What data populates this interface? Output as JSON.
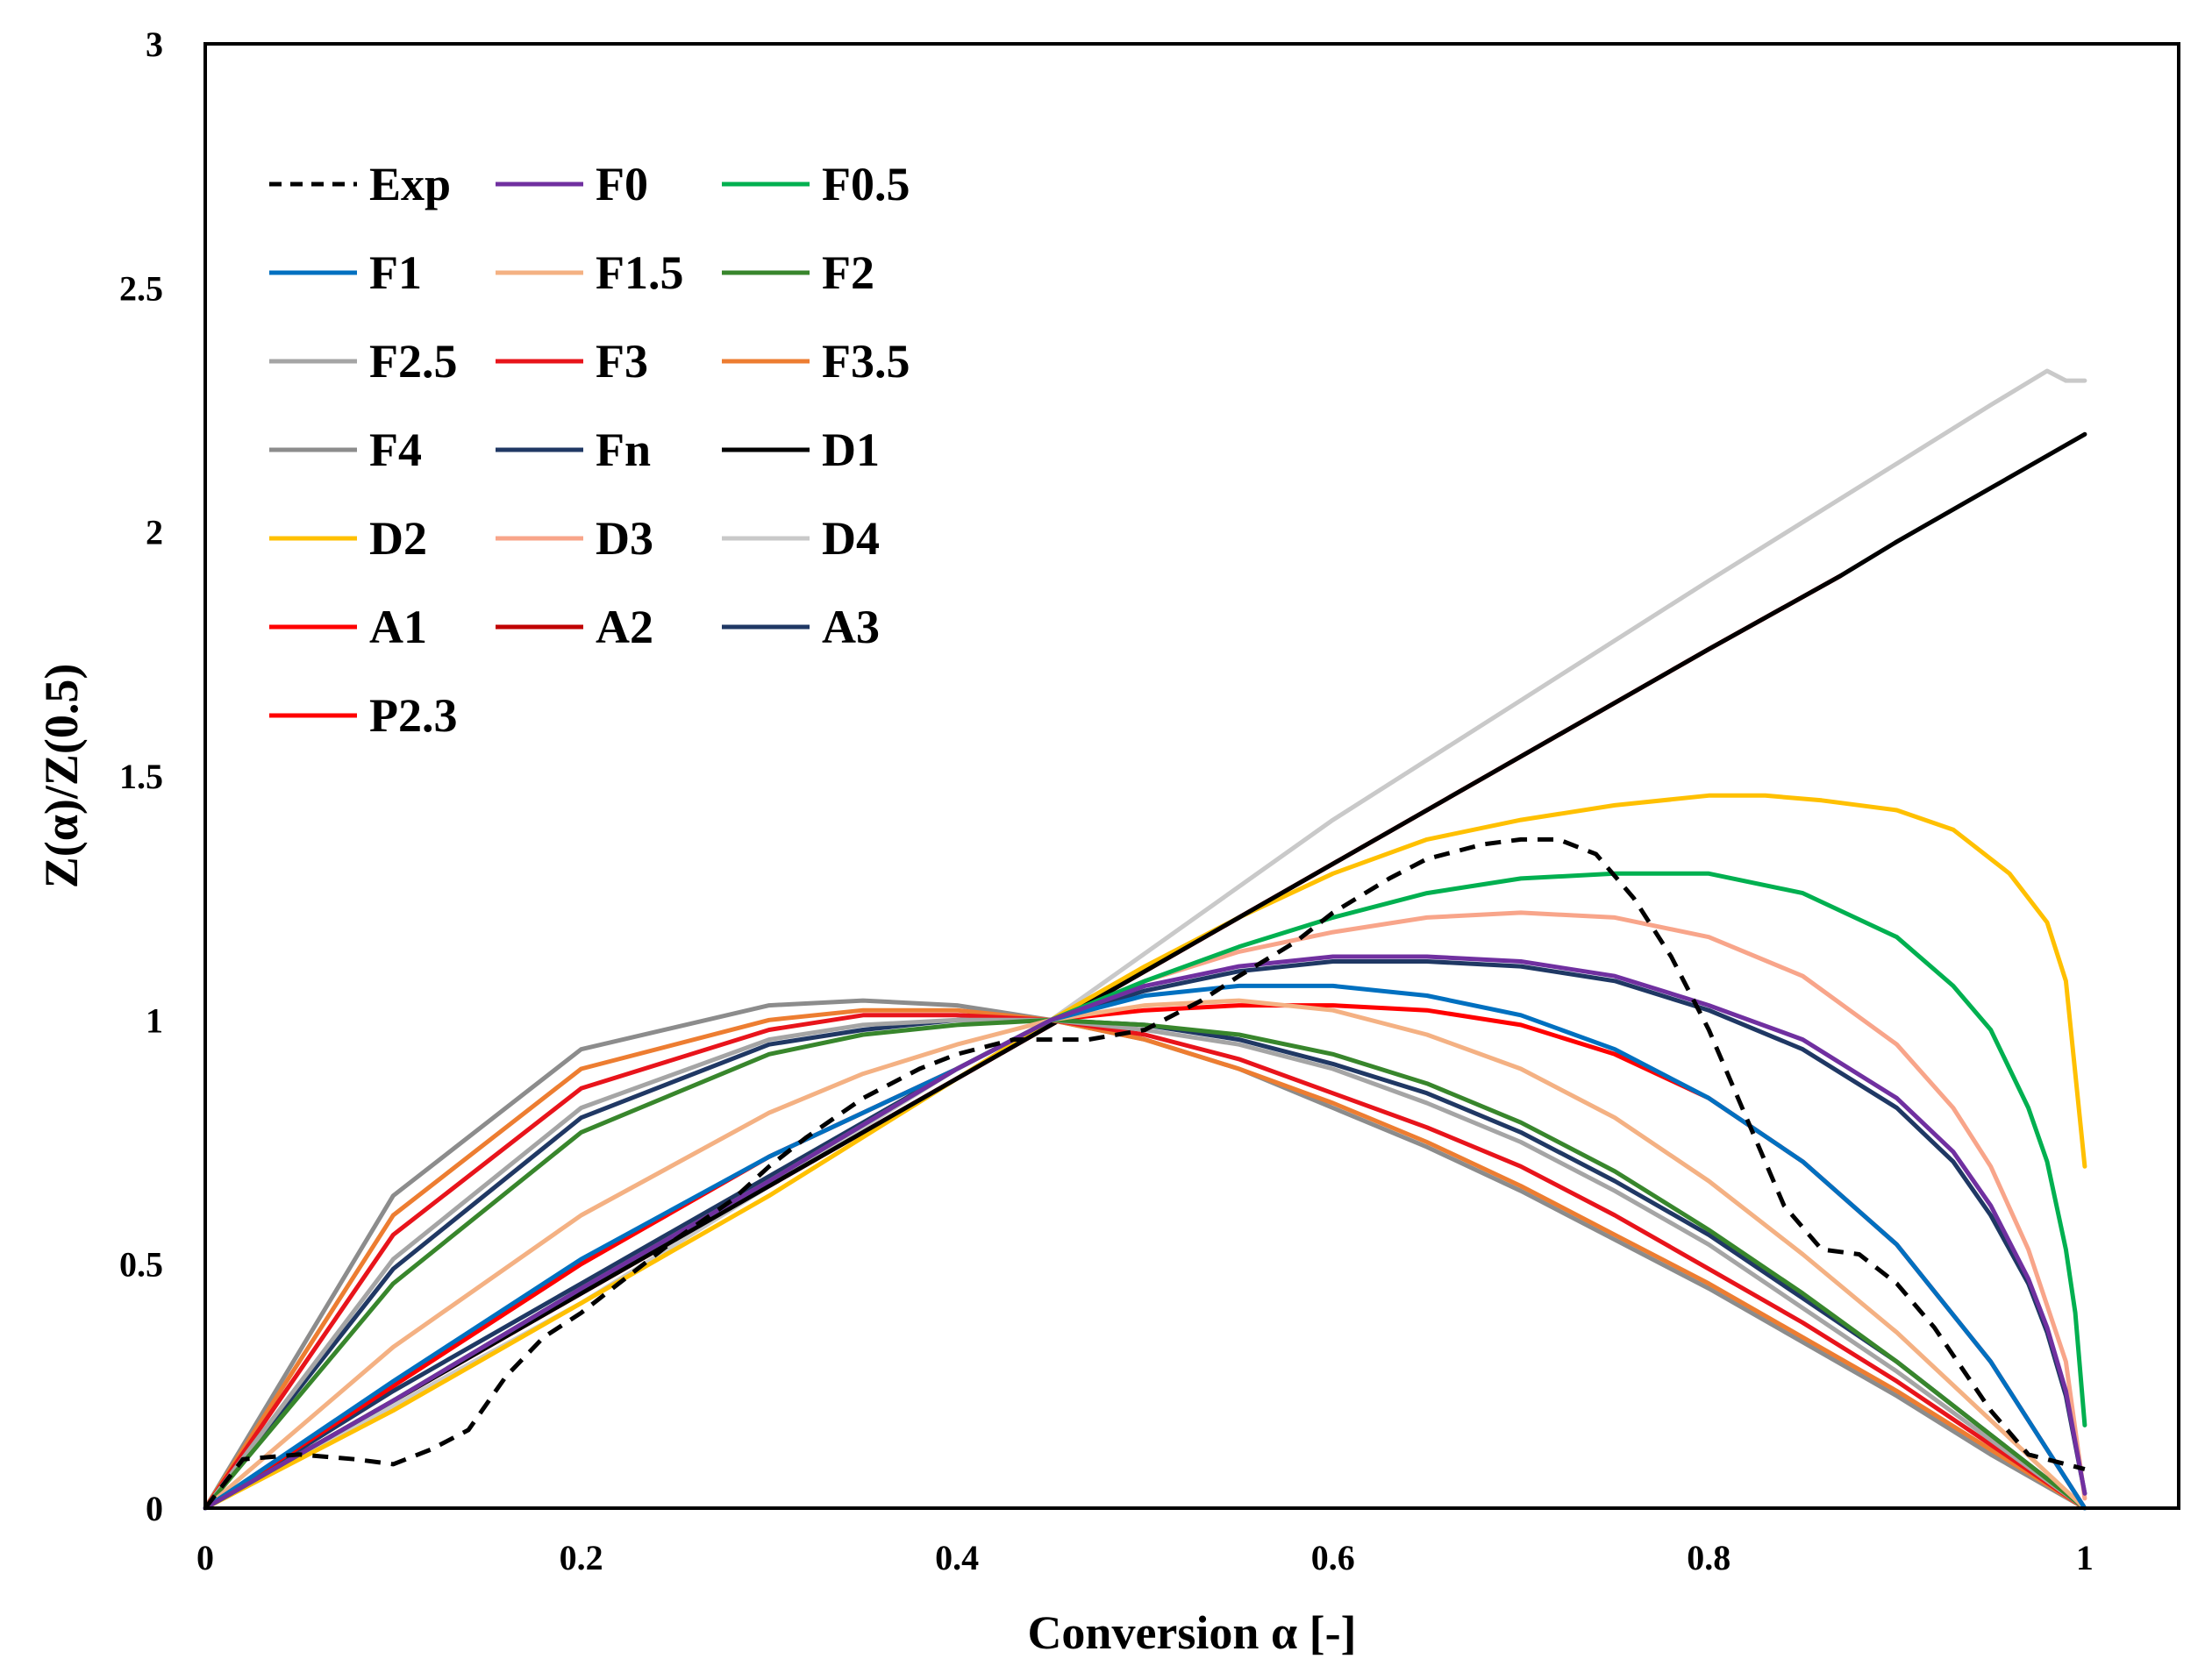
{
  "chart_data": {
    "type": "line",
    "title": "",
    "xlabel": "Conversion α [-]",
    "ylabel": "Z(α)/Z(0.5)",
    "xlim": [
      0,
      1.05
    ],
    "ylim": [
      0,
      3
    ],
    "xticks": [
      0,
      0.2,
      0.4,
      0.6,
      0.8,
      1
    ],
    "xtick_labels": [
      "0",
      "0.2",
      "0.4",
      "0.6",
      "0.8",
      "1"
    ],
    "yticks": [
      0,
      0.5,
      1,
      1.5,
      2,
      2.5,
      3
    ],
    "ytick_labels": [
      "0",
      "0.5",
      "1",
      "1.5",
      "2",
      "2.5",
      "3"
    ],
    "grid": false,
    "legend_position": "top-left",
    "series": [
      {
        "name": "Exp",
        "color": "#000000",
        "dash": true,
        "x": [
          0,
          0.02,
          0.05,
          0.08,
          0.1,
          0.12,
          0.14,
          0.16,
          0.18,
          0.2,
          0.22,
          0.25,
          0.28,
          0.3,
          0.32,
          0.35,
          0.38,
          0.4,
          0.43,
          0.45,
          0.47,
          0.5,
          0.53,
          0.55,
          0.58,
          0.6,
          0.63,
          0.65,
          0.68,
          0.7,
          0.72,
          0.74,
          0.76,
          0.78,
          0.8,
          0.82,
          0.84,
          0.86,
          0.88,
          0.9,
          0.92,
          0.95,
          0.97,
          0.99,
          1.0
        ],
        "y": [
          0.0,
          0.1,
          0.11,
          0.1,
          0.09,
          0.12,
          0.16,
          0.27,
          0.35,
          0.4,
          0.46,
          0.55,
          0.63,
          0.7,
          0.76,
          0.84,
          0.9,
          0.93,
          0.96,
          0.96,
          0.96,
          0.98,
          1.04,
          1.09,
          1.16,
          1.22,
          1.29,
          1.33,
          1.36,
          1.37,
          1.37,
          1.34,
          1.25,
          1.13,
          0.98,
          0.8,
          0.62,
          0.53,
          0.52,
          0.46,
          0.37,
          0.2,
          0.11,
          0.09,
          0.08
        ]
      },
      {
        "name": "F0",
        "color": "#7030A0",
        "dash": false,
        "x": [
          0,
          0.1,
          0.2,
          0.3,
          0.4,
          0.45,
          0.5,
          0.55,
          0.6,
          0.65,
          0.7,
          0.75,
          0.8,
          0.85,
          0.9,
          0.93,
          0.95,
          0.97,
          0.98,
          0.99,
          1.0
        ],
        "y": [
          0.0,
          0.22,
          0.45,
          0.67,
          0.9,
          1.0,
          1.07,
          1.11,
          1.13,
          1.13,
          1.12,
          1.09,
          1.03,
          0.96,
          0.84,
          0.73,
          0.62,
          0.47,
          0.37,
          0.24,
          0.03
        ]
      },
      {
        "name": "F0.5",
        "color": "#00B050",
        "dash": false,
        "x": [
          0,
          0.1,
          0.2,
          0.3,
          0.4,
          0.45,
          0.5,
          0.55,
          0.6,
          0.65,
          0.7,
          0.75,
          0.8,
          0.85,
          0.9,
          0.93,
          0.95,
          0.97,
          0.98,
          0.99,
          0.995,
          1.0
        ],
        "y": [
          0.0,
          0.22,
          0.45,
          0.67,
          0.9,
          1.0,
          1.08,
          1.15,
          1.21,
          1.26,
          1.29,
          1.3,
          1.3,
          1.26,
          1.17,
          1.07,
          0.98,
          0.82,
          0.71,
          0.53,
          0.4,
          0.17
        ]
      },
      {
        "name": "F1",
        "color": "#0070C0",
        "dash": false,
        "x": [
          0,
          0.1,
          0.2,
          0.3,
          0.4,
          0.45,
          0.5,
          0.55,
          0.6,
          0.65,
          0.7,
          0.75,
          0.8,
          0.85,
          0.9,
          0.95,
          1.0
        ],
        "y": [
          0.0,
          0.26,
          0.51,
          0.72,
          0.9,
          1.0,
          1.05,
          1.07,
          1.07,
          1.05,
          1.01,
          0.94,
          0.84,
          0.71,
          0.54,
          0.3,
          0.0
        ]
      },
      {
        "name": "F1.5",
        "color": "#F4B183",
        "dash": false,
        "x": [
          0,
          0.1,
          0.2,
          0.3,
          0.35,
          0.4,
          0.45,
          0.5,
          0.55,
          0.6,
          0.65,
          0.7,
          0.75,
          0.8,
          0.85,
          0.9,
          0.95,
          1.0
        ],
        "y": [
          0.0,
          0.33,
          0.6,
          0.81,
          0.89,
          0.95,
          1.0,
          1.03,
          1.04,
          1.02,
          0.97,
          0.9,
          0.8,
          0.67,
          0.52,
          0.36,
          0.18,
          0.0
        ]
      },
      {
        "name": "F2",
        "color": "#38862C",
        "dash": false,
        "x": [
          0,
          0.1,
          0.2,
          0.3,
          0.35,
          0.4,
          0.45,
          0.5,
          0.55,
          0.6,
          0.65,
          0.7,
          0.75,
          0.8,
          0.85,
          0.9,
          0.95,
          1.0
        ],
        "y": [
          0.0,
          0.46,
          0.77,
          0.93,
          0.97,
          0.99,
          1.0,
          0.99,
          0.97,
          0.93,
          0.87,
          0.79,
          0.69,
          0.57,
          0.44,
          0.3,
          0.15,
          0.0
        ]
      },
      {
        "name": "F2.5",
        "color": "#A5A5A5",
        "dash": false,
        "x": [
          0,
          0.1,
          0.2,
          0.3,
          0.35,
          0.4,
          0.45,
          0.5,
          0.55,
          0.6,
          0.65,
          0.7,
          0.75,
          0.8,
          0.85,
          0.9,
          0.95,
          1.0
        ],
        "y": [
          0.0,
          0.51,
          0.82,
          0.96,
          0.99,
          1.0,
          1.0,
          0.98,
          0.95,
          0.9,
          0.83,
          0.75,
          0.65,
          0.54,
          0.41,
          0.28,
          0.14,
          0.0
        ]
      },
      {
        "name": "F3",
        "color": "#E8141B",
        "dash": false,
        "x": [
          0,
          0.1,
          0.2,
          0.3,
          0.35,
          0.4,
          0.45,
          0.5,
          0.55,
          0.6,
          0.65,
          0.7,
          0.75,
          0.8,
          0.85,
          0.9,
          0.95,
          1.0
        ],
        "y": [
          0.0,
          0.56,
          0.86,
          0.98,
          1.01,
          1.01,
          1.0,
          0.97,
          0.92,
          0.85,
          0.78,
          0.7,
          0.6,
          0.49,
          0.38,
          0.26,
          0.13,
          0.0
        ]
      },
      {
        "name": "F3.5",
        "color": "#ED7D31",
        "dash": false,
        "x": [
          0,
          0.1,
          0.2,
          0.3,
          0.35,
          0.4,
          0.45,
          0.5,
          0.55,
          0.6,
          0.65,
          0.7,
          0.75,
          0.8,
          0.85,
          0.9,
          0.95,
          1.0
        ],
        "y": [
          0.0,
          0.6,
          0.9,
          1.0,
          1.02,
          1.02,
          1.0,
          0.96,
          0.9,
          0.83,
          0.75,
          0.66,
          0.56,
          0.46,
          0.35,
          0.24,
          0.12,
          0.0
        ]
      },
      {
        "name": "F4",
        "color": "#8C8C8C",
        "dash": false,
        "x": [
          0,
          0.1,
          0.2,
          0.3,
          0.35,
          0.4,
          0.45,
          0.5,
          0.55,
          0.6,
          0.65,
          0.7,
          0.75,
          0.8,
          0.85,
          0.9,
          0.95,
          1.0
        ],
        "y": [
          0.0,
          0.64,
          0.94,
          1.03,
          1.04,
          1.03,
          1.0,
          0.96,
          0.9,
          0.82,
          0.74,
          0.65,
          0.55,
          0.45,
          0.34,
          0.23,
          0.11,
          0.0
        ]
      },
      {
        "name": "Fn",
        "color": "#203864",
        "dash": false,
        "x": [
          0,
          0.1,
          0.2,
          0.3,
          0.35,
          0.4,
          0.45,
          0.5,
          0.55,
          0.6,
          0.65,
          0.7,
          0.75,
          0.8,
          0.85,
          0.9,
          0.95,
          1.0
        ],
        "y": [
          0.0,
          0.49,
          0.8,
          0.95,
          0.98,
          1.0,
          1.0,
          0.99,
          0.96,
          0.91,
          0.85,
          0.77,
          0.67,
          0.56,
          0.43,
          0.3,
          0.15,
          0.0
        ]
      },
      {
        "name": "D1",
        "color": "#000000",
        "dash": false,
        "x": [
          0,
          0.2,
          0.4,
          0.6,
          0.8,
          0.87,
          0.9,
          0.95,
          1.0
        ],
        "y": [
          0.0,
          0.44,
          0.88,
          1.32,
          1.76,
          1.91,
          1.98,
          2.09,
          2.2
        ]
      },
      {
        "name": "D2",
        "color": "#FFC000",
        "dash": false,
        "x": [
          0,
          0.1,
          0.2,
          0.3,
          0.4,
          0.45,
          0.5,
          0.55,
          0.6,
          0.65,
          0.7,
          0.75,
          0.8,
          0.83,
          0.86,
          0.9,
          0.93,
          0.96,
          0.98,
          0.99,
          1.0
        ],
        "y": [
          0.0,
          0.2,
          0.42,
          0.64,
          0.88,
          1.0,
          1.11,
          1.21,
          1.3,
          1.37,
          1.41,
          1.44,
          1.46,
          1.46,
          1.45,
          1.43,
          1.39,
          1.3,
          1.2,
          1.08,
          0.7
        ]
      },
      {
        "name": "D3",
        "color": "#F8A58A",
        "dash": false,
        "x": [
          0,
          0.1,
          0.2,
          0.3,
          0.4,
          0.45,
          0.5,
          0.55,
          0.6,
          0.65,
          0.7,
          0.75,
          0.8,
          0.85,
          0.9,
          0.93,
          0.95,
          0.97,
          0.99,
          1.0
        ],
        "y": [
          0.0,
          0.22,
          0.45,
          0.67,
          0.9,
          1.0,
          1.08,
          1.14,
          1.18,
          1.21,
          1.22,
          1.21,
          1.17,
          1.09,
          0.95,
          0.82,
          0.7,
          0.53,
          0.3,
          0.02
        ]
      },
      {
        "name": "D4",
        "color": "#C9C9C9",
        "dash": false,
        "x": [
          0,
          0.2,
          0.4,
          0.45,
          0.6,
          0.8,
          0.9,
          0.95,
          0.98,
          0.99,
          1.0
        ],
        "y": [
          0.0,
          0.42,
          0.9,
          1.0,
          1.41,
          1.9,
          2.14,
          2.26,
          2.33,
          2.31,
          2.31
        ]
      },
      {
        "name": "A1",
        "color": "#FF0000",
        "dash": false,
        "x": [
          0,
          0.1,
          0.2,
          0.3,
          0.4,
          0.45,
          0.5,
          0.55,
          0.6,
          0.65,
          0.7,
          0.75,
          0.8,
          0.85,
          0.9,
          0.95,
          1.0
        ],
        "y": [
          0.0,
          0.25,
          0.5,
          0.72,
          0.9,
          1.0,
          1.02,
          1.03,
          1.03,
          1.02,
          0.99,
          0.93,
          0.84,
          0.71,
          0.54,
          0.3,
          0.0
        ]
      },
      {
        "name": "A2",
        "color": "#C00000",
        "dash": false,
        "x": [
          0,
          0.2,
          0.4,
          0.6,
          0.8,
          0.87
        ],
        "y": [
          0.0,
          0.44,
          0.88,
          1.32,
          1.76,
          1.91
        ]
      },
      {
        "name": "A3",
        "color": "#1F3864",
        "dash": false,
        "x": [
          0,
          0.1,
          0.2,
          0.3,
          0.4,
          0.45,
          0.5,
          0.55,
          0.6,
          0.63,
          0.65,
          0.7,
          0.75,
          0.8,
          0.85,
          0.9,
          0.93,
          0.95,
          0.97,
          0.98,
          0.99,
          1.0
        ],
        "y": [
          0.0,
          0.24,
          0.46,
          0.68,
          0.9,
          1.0,
          1.06,
          1.1,
          1.12,
          1.12,
          1.12,
          1.11,
          1.08,
          1.02,
          0.94,
          0.82,
          0.71,
          0.6,
          0.46,
          0.36,
          0.23,
          0.03
        ]
      },
      {
        "name": "P2.3",
        "color": "#FF0000",
        "dash": false,
        "x": [
          0,
          0.2,
          0.4,
          0.6,
          0.8,
          0.87
        ],
        "y": [
          0.0,
          0.44,
          0.88,
          1.32,
          1.76,
          1.91
        ]
      }
    ],
    "legend_columns": 3
  }
}
